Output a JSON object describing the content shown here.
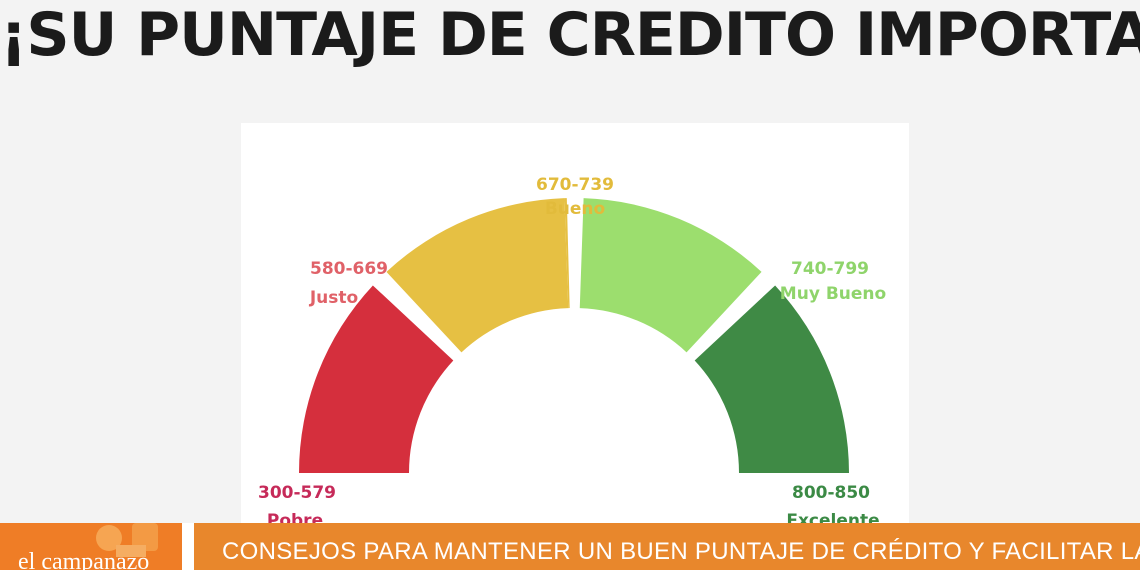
{
  "headline": "¡SU PUNTAJE DE CREDITO IMPORTA!",
  "gauge": {
    "segments": [
      {
        "range": "300-579",
        "label": "Pobre",
        "color": "#d52f3d"
      },
      {
        "range": "580-669",
        "label": "Justo",
        "color": "#e6c043"
      },
      {
        "range": "670-739",
        "label": "Bueno",
        "color": "#e6c043"
      },
      {
        "range": "740-799",
        "label": "Muy Bueno",
        "color": "#9cde6e"
      },
      {
        "range": "800-850",
        "label": "Excelente",
        "color": "#3f8a45"
      }
    ],
    "label_colors": {
      "Pobre": "#c62a59",
      "Justo": "#e06168",
      "Bueno": "#e2bb3b",
      "Muy Bueno": "#8fd46b",
      "Excelente": "#3b8a45"
    }
  },
  "banner": {
    "logo": "el campanazo",
    "headline": "CONSEJOS PARA MANTENER UN BUEN PUNTAJE DE CRÉDITO Y FACILITAR LA"
  }
}
